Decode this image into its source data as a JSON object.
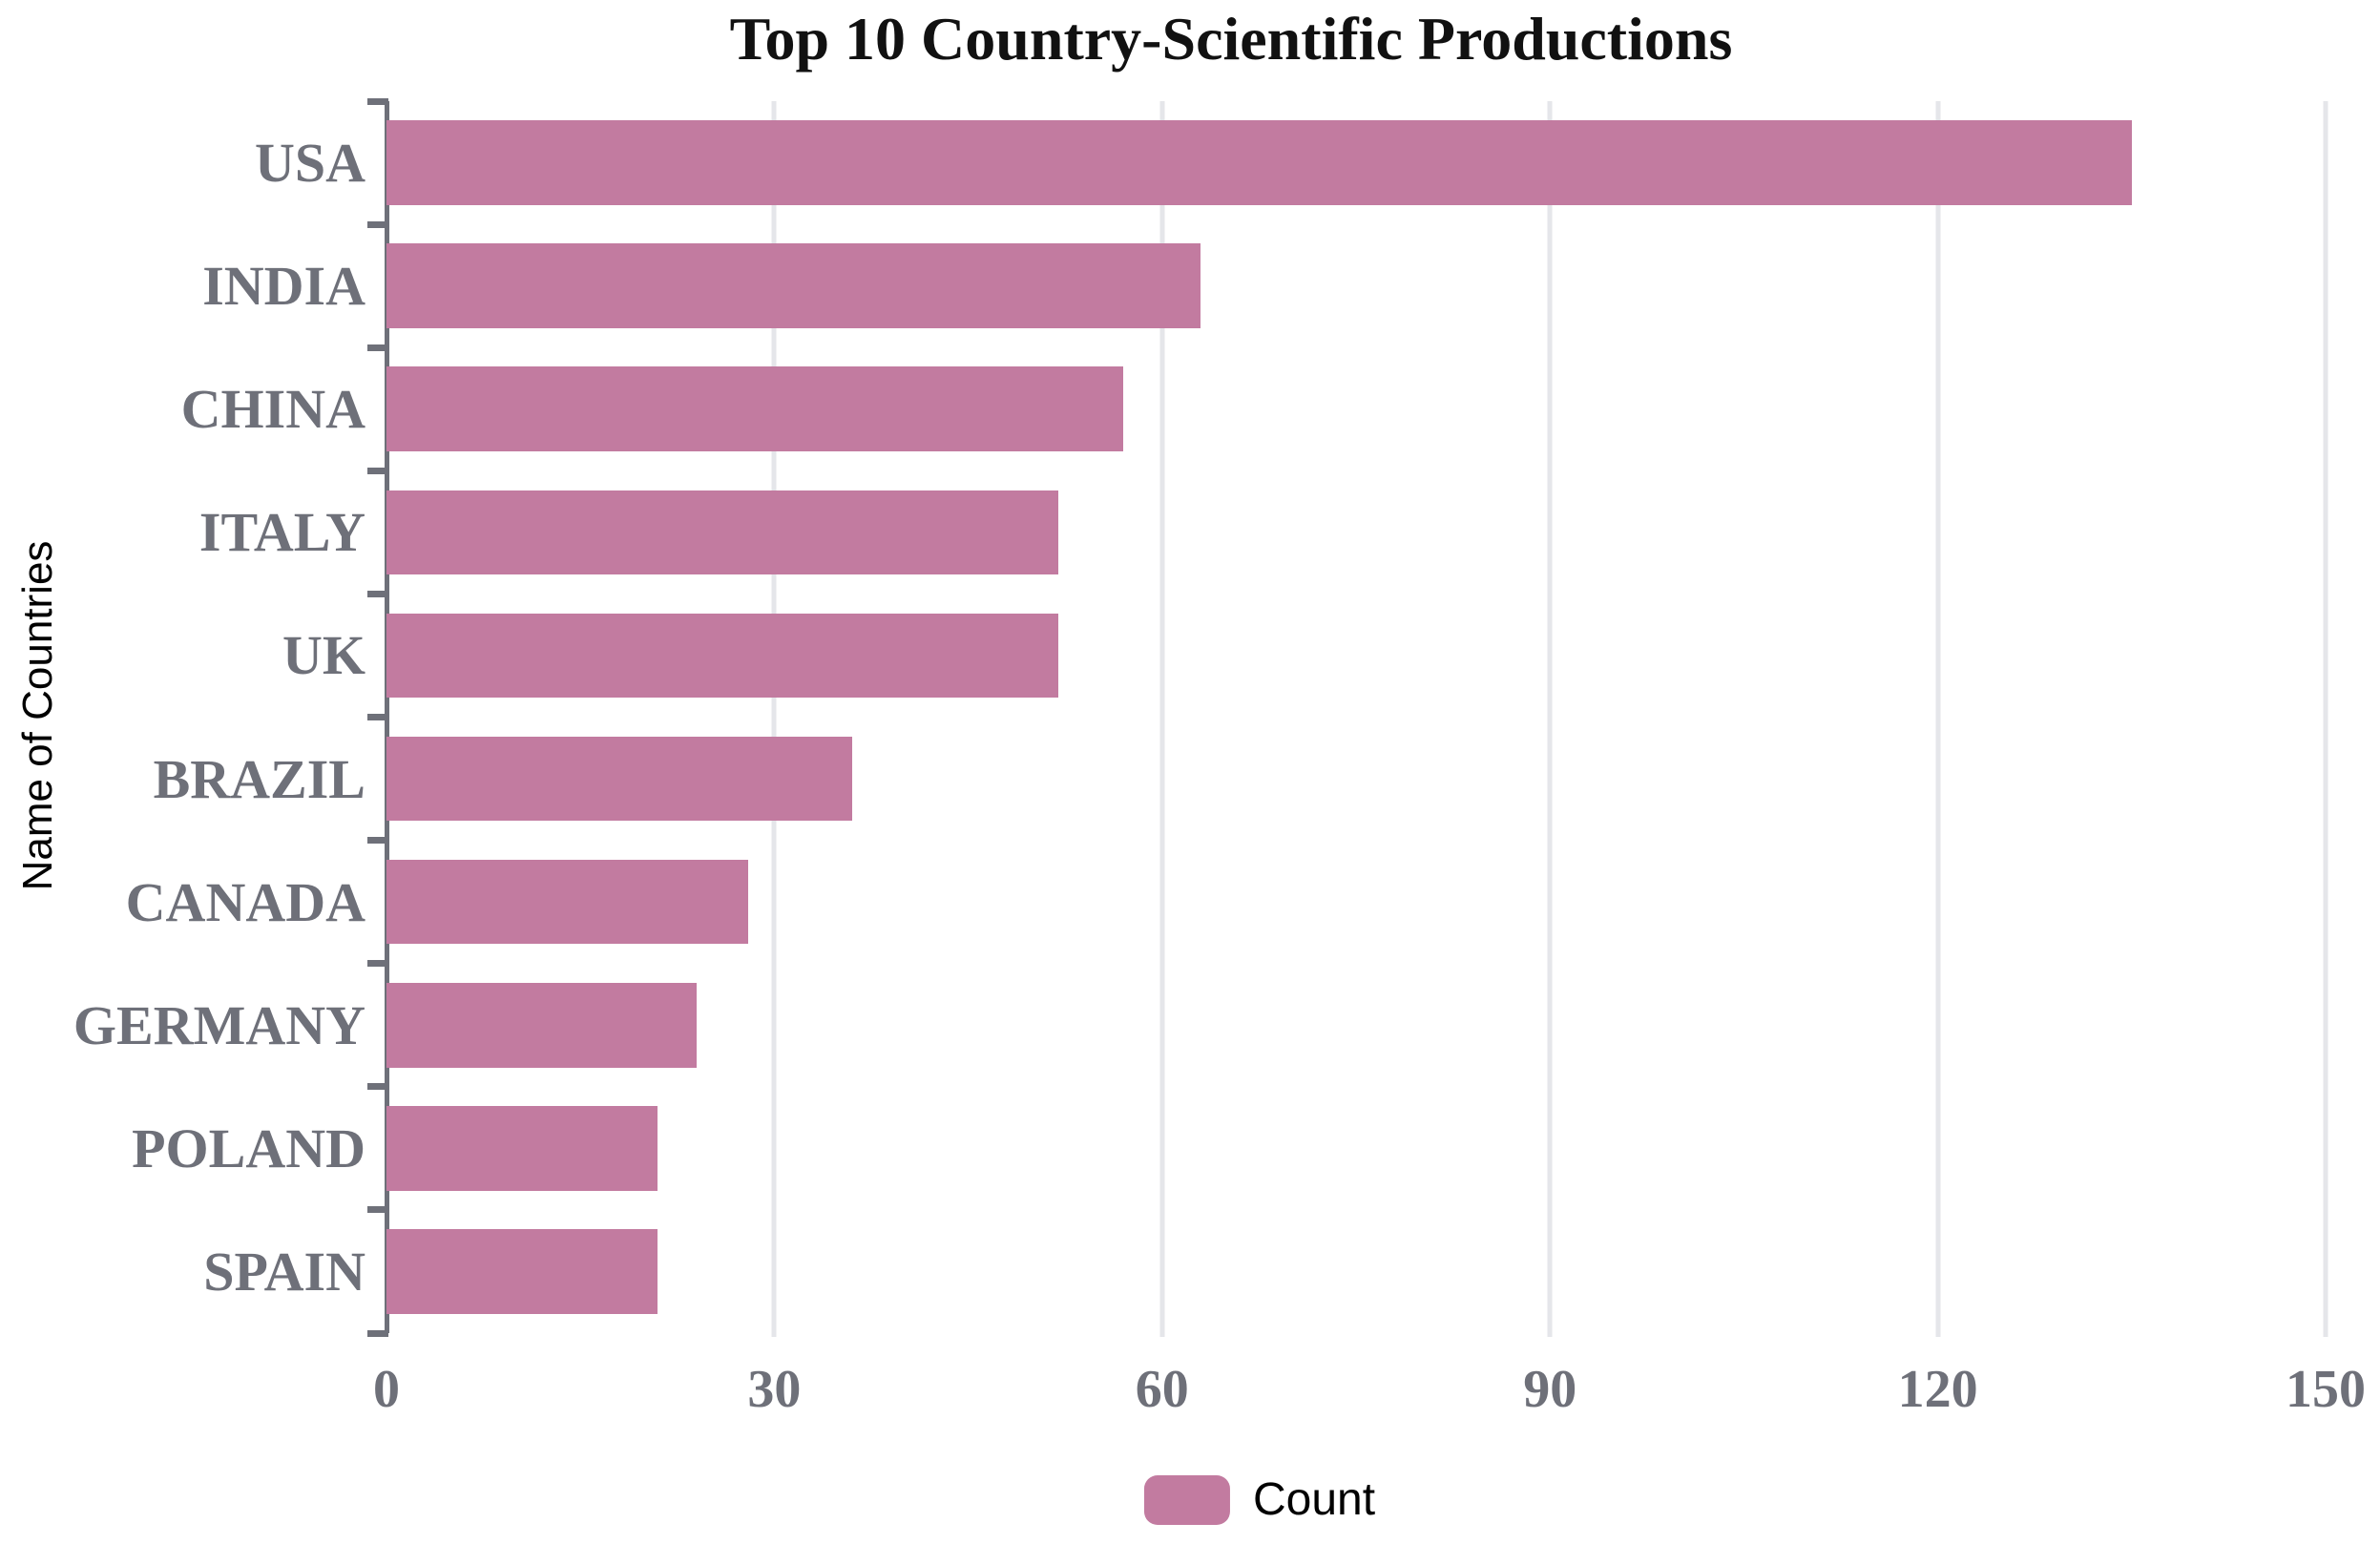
{
  "chart_data": {
    "type": "bar",
    "orientation": "horizontal",
    "title": "Top 10 Country-Scientific Productions",
    "xlabel": "",
    "ylabel": "Name of Countries",
    "categories": [
      "USA",
      "INDIA",
      "CHINA",
      "ITALY",
      "UK",
      "BRAZIL",
      "CANADA",
      "GERMANY",
      "POLAND",
      "SPAIN"
    ],
    "values": [
      135,
      63,
      57,
      52,
      52,
      36,
      28,
      24,
      21,
      21
    ],
    "series_name": "Count",
    "xlim": [
      0,
      150
    ],
    "xticks": [
      0,
      30,
      60,
      90,
      120,
      150
    ],
    "grid": true,
    "legend_position": "bottom",
    "bar_color": "#c27ba0",
    "axis_color": "#6E7079",
    "label_color": "#6E7079",
    "gridline_color": "#e5e6ea",
    "title_color": "#111111"
  }
}
